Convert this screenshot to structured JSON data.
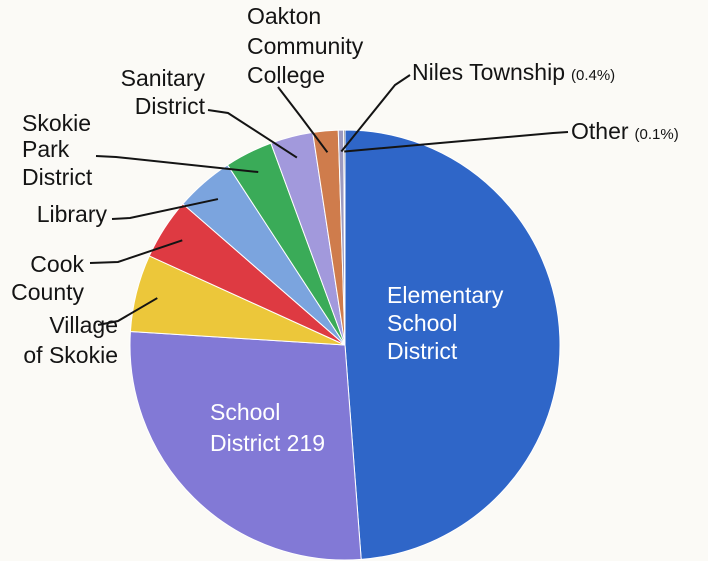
{
  "chart_data": {
    "type": "pie",
    "title": "",
    "start_angle_deg": 0,
    "direction": "clockwise",
    "slices": [
      {
        "label": "Elementary School District",
        "value": 48.8,
        "color": "#2f66c8"
      },
      {
        "label": "School District 219",
        "value": 27.2,
        "color": "#8279d6"
      },
      {
        "label": "Village of Skokie",
        "value": 5.8,
        "color": "#ecc73a"
      },
      {
        "label": "Cook County",
        "value": 4.6,
        "color": "#de3a42"
      },
      {
        "label": "Library",
        "value": 4.4,
        "color": "#7ba4de"
      },
      {
        "label": "Skokie Park District",
        "value": 3.6,
        "color": "#3aab58",
        "label_color": "#3a9a5c"
      },
      {
        "label": "Sanitary District",
        "value": 3.2,
        "color": "#a299dc"
      },
      {
        "label": "Oakton Community College",
        "value": 1.9,
        "color": "#cf7c4c"
      },
      {
        "label": "Niles Township",
        "value": 0.4,
        "color": "#9c9ac0",
        "pct_text": "(0.4%)"
      },
      {
        "label": "Other",
        "value": 0.1,
        "color": "#111111",
        "pct_text": "(0.1%)"
      }
    ]
  }
}
